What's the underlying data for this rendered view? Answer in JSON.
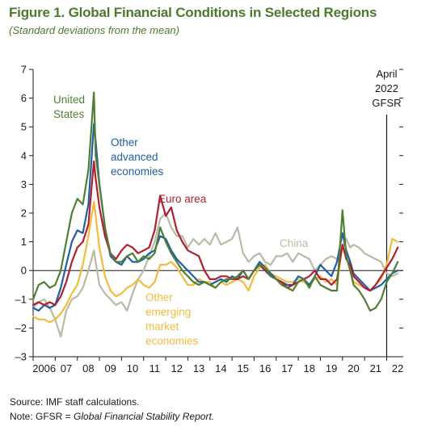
{
  "title": "Figure 1. Global Financial Conditions in Selected Regions",
  "subtitle": "(Standard deviations from the mean)",
  "source": "Source: IMF staff calculations.",
  "note_prefix": "Note: GFSR = ",
  "note_italic": "Global Financial Stability Report.",
  "colors": {
    "united_states": "#4f7f34",
    "other_advanced": "#1f5fa6",
    "euro_area": "#b11f2e",
    "other_emerging": "#f2bb3c",
    "china": "#b9b9a6",
    "axis": "#1a1a1a"
  },
  "chart_data": {
    "type": "line",
    "ylabel": "",
    "xlabel": "",
    "ylim": [
      -3,
      7
    ],
    "xlim": [
      2006,
      2022.75
    ],
    "y_ticks": [
      "–3",
      "–2",
      "–1",
      "0",
      "1",
      "2",
      "3",
      "4",
      "5",
      "6",
      "7"
    ],
    "x_tick_labels": [
      "2006",
      "07",
      "08",
      "09",
      "10",
      "11",
      "12",
      "13",
      "14",
      "15",
      "16",
      "17",
      "18",
      "19",
      "20",
      "21",
      "22"
    ],
    "grid": false,
    "zero_line": true,
    "vline": {
      "x": 2022.0,
      "label_lines": [
        "April",
        "2022",
        "GFSR"
      ]
    },
    "series": [
      {
        "name": "United States",
        "label_lines": [
          "United",
          "States"
        ],
        "color_key": "united_states",
        "x": [
          2006.0,
          2006.25,
          2006.5,
          2006.75,
          2007.0,
          2007.25,
          2007.5,
          2007.75,
          2008.0,
          2008.25,
          2008.5,
          2008.75,
          2008.83,
          2009.0,
          2009.25,
          2009.5,
          2009.75,
          2010.0,
          2010.25,
          2010.5,
          2010.75,
          2011.0,
          2011.25,
          2011.5,
          2011.75,
          2012.0,
          2012.25,
          2012.5,
          2012.75,
          2013.0,
          2013.25,
          2013.5,
          2013.75,
          2014.0,
          2014.25,
          2014.5,
          2014.75,
          2015.0,
          2015.25,
          2015.5,
          2015.75,
          2016.0,
          2016.25,
          2016.5,
          2016.75,
          2017.0,
          2017.25,
          2017.5,
          2017.75,
          2018.0,
          2018.25,
          2018.5,
          2018.75,
          2019.0,
          2019.25,
          2019.5,
          2019.75,
          2020.0,
          2020.17,
          2020.35,
          2020.5,
          2020.75,
          2021.0,
          2021.25,
          2021.5,
          2021.75,
          2022.0,
          2022.25,
          2022.5
        ],
        "values": [
          -1.0,
          -0.5,
          -0.4,
          -0.6,
          -0.5,
          0.0,
          1.0,
          2.0,
          2.5,
          2.3,
          3.5,
          6.2,
          4.0,
          3.0,
          1.5,
          0.6,
          0.3,
          0.3,
          0.5,
          0.6,
          0.3,
          0.5,
          0.4,
          0.6,
          1.5,
          1.0,
          0.6,
          0.3,
          0.0,
          -0.2,
          -0.4,
          -0.5,
          -0.4,
          -0.5,
          -0.6,
          -0.4,
          -0.3,
          -0.3,
          -0.2,
          0.0,
          -0.3,
          0.0,
          0.2,
          0.1,
          -0.2,
          -0.3,
          -0.5,
          -0.6,
          -0.7,
          -0.4,
          -0.3,
          -0.6,
          -0.2,
          -0.5,
          -0.6,
          -0.7,
          -0.7,
          2.1,
          0.5,
          0.0,
          -0.5,
          -0.7,
          -1.0,
          -1.4,
          -1.3,
          -1.0,
          -0.4,
          -0.1,
          0.3
        ]
      },
      {
        "name": "Other advanced economies",
        "label_lines": [
          "Other",
          "advanced",
          "economies"
        ],
        "color_key": "other_advanced",
        "x": [
          2006.0,
          2006.25,
          2006.5,
          2006.75,
          2007.0,
          2007.25,
          2007.5,
          2007.75,
          2008.0,
          2008.25,
          2008.5,
          2008.75,
          2008.83,
          2009.0,
          2009.25,
          2009.5,
          2009.75,
          2010.0,
          2010.25,
          2010.5,
          2010.75,
          2011.0,
          2011.25,
          2011.5,
          2011.75,
          2012.0,
          2012.25,
          2012.5,
          2012.75,
          2013.0,
          2013.25,
          2013.5,
          2013.75,
          2014.0,
          2014.25,
          2014.5,
          2014.75,
          2015.0,
          2015.25,
          2015.5,
          2015.75,
          2016.0,
          2016.25,
          2016.5,
          2016.75,
          2017.0,
          2017.25,
          2017.5,
          2017.75,
          2018.0,
          2018.25,
          2018.5,
          2018.75,
          2019.0,
          2019.25,
          2019.5,
          2019.75,
          2020.0,
          2020.17,
          2020.35,
          2020.5,
          2020.75,
          2021.0,
          2021.25,
          2021.5,
          2021.75,
          2022.0,
          2022.25,
          2022.5
        ],
        "values": [
          -1.3,
          -1.4,
          -1.2,
          -1.3,
          -1.2,
          -0.6,
          0.2,
          1.0,
          1.4,
          1.3,
          2.3,
          5.1,
          4.5,
          3.0,
          1.5,
          0.5,
          0.3,
          0.2,
          0.5,
          0.3,
          0.3,
          0.4,
          0.6,
          0.7,
          1.2,
          1.1,
          0.7,
          0.4,
          0.2,
          0.0,
          -0.2,
          -0.4,
          -0.4,
          -0.5,
          -0.4,
          -0.3,
          -0.4,
          -0.2,
          -0.3,
          0.0,
          -0.3,
          0.0,
          0.3,
          0.1,
          -0.1,
          -0.3,
          -0.4,
          -0.5,
          -0.5,
          -0.2,
          -0.3,
          -0.5,
          -0.2,
          0.2,
          0.0,
          -0.2,
          0.3,
          1.3,
          0.7,
          0.3,
          -0.1,
          -0.3,
          -0.5,
          -0.7,
          -0.6,
          -0.5,
          -0.3,
          -0.1,
          0.0
        ]
      },
      {
        "name": "Euro area",
        "label_lines": [
          "Euro area"
        ],
        "color_key": "euro_area",
        "x": [
          2006.0,
          2006.25,
          2006.5,
          2006.75,
          2007.0,
          2007.25,
          2007.5,
          2007.75,
          2008.0,
          2008.25,
          2008.5,
          2008.75,
          2008.83,
          2009.0,
          2009.25,
          2009.5,
          2009.75,
          2010.0,
          2010.25,
          2010.5,
          2010.75,
          2011.0,
          2011.25,
          2011.5,
          2011.75,
          2012.0,
          2012.25,
          2012.5,
          2012.75,
          2013.0,
          2013.25,
          2013.5,
          2013.75,
          2014.0,
          2014.25,
          2014.5,
          2014.75,
          2015.0,
          2015.25,
          2015.5,
          2015.75,
          2016.0,
          2016.25,
          2016.5,
          2016.75,
          2017.0,
          2017.25,
          2017.5,
          2017.75,
          2018.0,
          2018.25,
          2018.5,
          2018.75,
          2019.0,
          2019.25,
          2019.5,
          2019.75,
          2020.0,
          2020.17,
          2020.35,
          2020.5,
          2020.75,
          2021.0,
          2021.25,
          2021.5,
          2021.75,
          2022.0,
          2022.25,
          2022.5
        ],
        "values": [
          -1.2,
          -1.1,
          -1.2,
          -1.1,
          -1.2,
          -0.9,
          -0.4,
          0.3,
          0.8,
          1.0,
          1.6,
          3.8,
          3.2,
          2.2,
          1.2,
          0.6,
          0.4,
          0.7,
          0.9,
          0.8,
          0.6,
          0.7,
          0.8,
          1.4,
          2.6,
          1.9,
          2.2,
          1.4,
          1.0,
          0.7,
          0.6,
          0.5,
          0.0,
          -0.3,
          -0.3,
          -0.2,
          -0.2,
          -0.3,
          -0.3,
          -0.2,
          -0.3,
          0.0,
          0.2,
          0.0,
          -0.2,
          -0.3,
          -0.4,
          -0.6,
          -0.5,
          -0.4,
          -0.3,
          -0.2,
          0.0,
          -0.3,
          -0.3,
          -0.5,
          -0.3,
          0.9,
          0.4,
          0.2,
          -0.2,
          -0.4,
          -0.6,
          -0.7,
          -0.5,
          -0.2,
          0.1,
          0.4,
          0.8
        ]
      },
      {
        "name": "Other emerging market economies",
        "label_lines": [
          "Other",
          "emerging",
          "market",
          "economies"
        ],
        "color_key": "other_emerging",
        "x": [
          2006.0,
          2006.25,
          2006.5,
          2006.75,
          2007.0,
          2007.25,
          2007.5,
          2007.75,
          2008.0,
          2008.25,
          2008.5,
          2008.75,
          2008.83,
          2009.0,
          2009.25,
          2009.5,
          2009.75,
          2010.0,
          2010.25,
          2010.5,
          2010.75,
          2011.0,
          2011.25,
          2011.5,
          2011.75,
          2012.0,
          2012.25,
          2012.5,
          2012.75,
          2013.0,
          2013.25,
          2013.5,
          2013.75,
          2014.0,
          2014.25,
          2014.5,
          2014.75,
          2015.0,
          2015.25,
          2015.5,
          2015.75,
          2016.0,
          2016.25,
          2016.5,
          2016.75,
          2017.0,
          2017.25,
          2017.5,
          2017.75,
          2018.0,
          2018.25,
          2018.5,
          2018.75,
          2019.0,
          2019.25,
          2019.5,
          2019.75,
          2020.0,
          2020.17,
          2020.35,
          2020.5,
          2020.75,
          2021.0,
          2021.25,
          2021.5,
          2021.75,
          2022.0,
          2022.25,
          2022.5
        ],
        "values": [
          -1.6,
          -1.7,
          -1.7,
          -1.8,
          -1.7,
          -1.5,
          -1.2,
          -0.8,
          -0.5,
          0.2,
          1.2,
          2.4,
          1.9,
          0.8,
          -0.2,
          -0.7,
          -0.9,
          -0.8,
          -0.6,
          -0.5,
          -0.3,
          -0.5,
          -0.6,
          -0.4,
          0.2,
          0.2,
          0.3,
          0.1,
          -0.2,
          -0.5,
          -0.5,
          -0.3,
          -0.4,
          -0.4,
          -0.6,
          -0.4,
          -0.5,
          -0.4,
          -0.3,
          -0.4,
          -0.7,
          -0.2,
          0.1,
          0.2,
          -0.1,
          -0.2,
          -0.3,
          -0.4,
          -0.4,
          -0.3,
          -0.4,
          -0.5,
          -0.3,
          -0.2,
          -0.4,
          -0.3,
          -0.5,
          0.9,
          0.5,
          0.0,
          -0.4,
          -0.5,
          -0.6,
          -0.7,
          -0.5,
          -0.3,
          0.2,
          1.1,
          1.0
        ]
      },
      {
        "name": "China",
        "label_lines": [
          "China"
        ],
        "color_key": "china",
        "x": [
          2006.0,
          2006.25,
          2006.5,
          2006.75,
          2007.0,
          2007.25,
          2007.5,
          2007.75,
          2008.0,
          2008.25,
          2008.5,
          2008.75,
          2008.83,
          2009.0,
          2009.25,
          2009.5,
          2009.75,
          2010.0,
          2010.25,
          2010.5,
          2010.75,
          2011.0,
          2011.25,
          2011.5,
          2011.75,
          2012.0,
          2012.25,
          2012.5,
          2012.75,
          2013.0,
          2013.25,
          2013.5,
          2013.75,
          2014.0,
          2014.25,
          2014.5,
          2014.75,
          2015.0,
          2015.25,
          2015.5,
          2015.75,
          2016.0,
          2016.25,
          2016.5,
          2016.75,
          2017.0,
          2017.25,
          2017.5,
          2017.75,
          2018.0,
          2018.25,
          2018.5,
          2018.75,
          2019.0,
          2019.25,
          2019.5,
          2019.75,
          2020.0,
          2020.17,
          2020.35,
          2020.5,
          2020.75,
          2021.0,
          2021.25,
          2021.5,
          2021.75,
          2022.0,
          2022.25,
          2022.5
        ],
        "values": [
          -1.3,
          -1.1,
          -1.0,
          -1.3,
          -1.7,
          -2.3,
          -1.4,
          -1.0,
          -0.9,
          -0.6,
          0.0,
          0.7,
          0.3,
          -0.5,
          -0.8,
          -1.0,
          -1.2,
          -1.1,
          -1.4,
          -0.8,
          -0.3,
          0.0,
          0.5,
          1.0,
          1.8,
          2.0,
          1.5,
          1.2,
          1.2,
          0.8,
          1.1,
          0.9,
          1.1,
          0.9,
          1.3,
          0.9,
          1.0,
          1.1,
          1.5,
          0.6,
          0.3,
          0.5,
          0.6,
          0.3,
          0.2,
          0.5,
          0.5,
          0.6,
          0.3,
          0.6,
          0.5,
          0.4,
          0.0,
          0.2,
          0.4,
          0.5,
          0.4,
          0.8,
          1.1,
          0.8,
          0.9,
          0.8,
          0.6,
          0.5,
          0.4,
          0.3,
          -0.1,
          -0.2,
          -0.1
        ]
      }
    ]
  }
}
